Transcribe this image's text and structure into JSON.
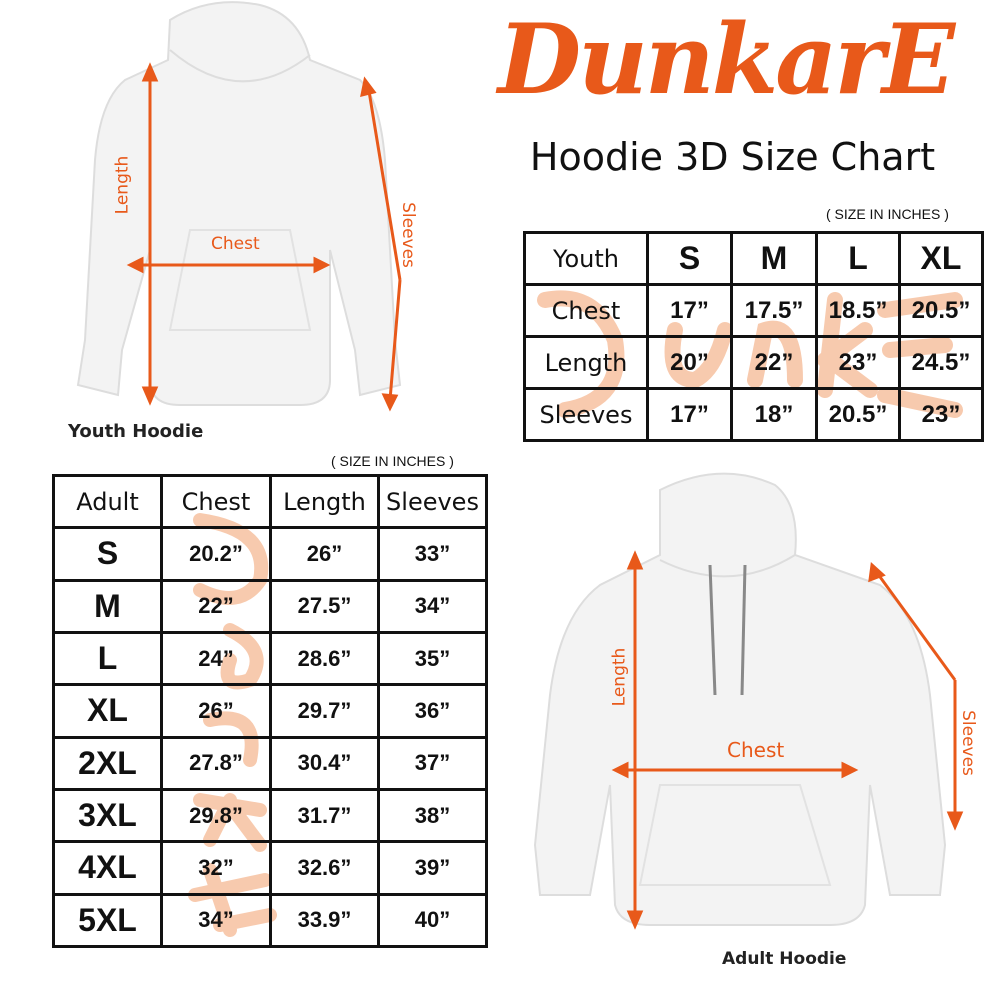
{
  "brand": {
    "logo_text": "DunkarE",
    "color": "#e8591a",
    "watermark_color": "#f5b48c"
  },
  "title": "Hoodie 3D Size Chart",
  "youth": {
    "unit_note": "( SIZE IN INCHES )",
    "caption": "Youth Hoodie",
    "diagram_labels": {
      "length": "Length",
      "chest": "Chest",
      "sleeves": "Sleeves"
    },
    "header": [
      "Youth",
      "S",
      "M",
      "L",
      "XL"
    ],
    "rows": [
      [
        "Chest",
        "17”",
        "17.5”",
        "18.5”",
        "20.5”"
      ],
      [
        "Length",
        "20”",
        "22”",
        "23”",
        "24.5”"
      ],
      [
        "Sleeves",
        "17”",
        "18”",
        "20.5”",
        "23”"
      ]
    ]
  },
  "adult": {
    "unit_note": "( SIZE IN INCHES )",
    "caption": "Adult Hoodie",
    "diagram_labels": {
      "length": "Length",
      "chest": "Chest",
      "sleeves": "Sleeves"
    },
    "header": [
      "Adult",
      "Chest",
      "Length",
      "Sleeves"
    ],
    "rows": [
      [
        "S",
        "20.2”",
        "26”",
        "33”"
      ],
      [
        "M",
        "22”",
        "27.5”",
        "34”"
      ],
      [
        "L",
        "24”",
        "28.6”",
        "35”"
      ],
      [
        "XL",
        "26”",
        "29.7”",
        "36”"
      ],
      [
        "2XL",
        "27.8”",
        "30.4”",
        "37”"
      ],
      [
        "3XL",
        "29.8”",
        "31.7”",
        "38”"
      ],
      [
        "4XL",
        "32”",
        "32.6”",
        "39”"
      ],
      [
        "5XL",
        "34”",
        "33.9”",
        "40”"
      ]
    ]
  }
}
